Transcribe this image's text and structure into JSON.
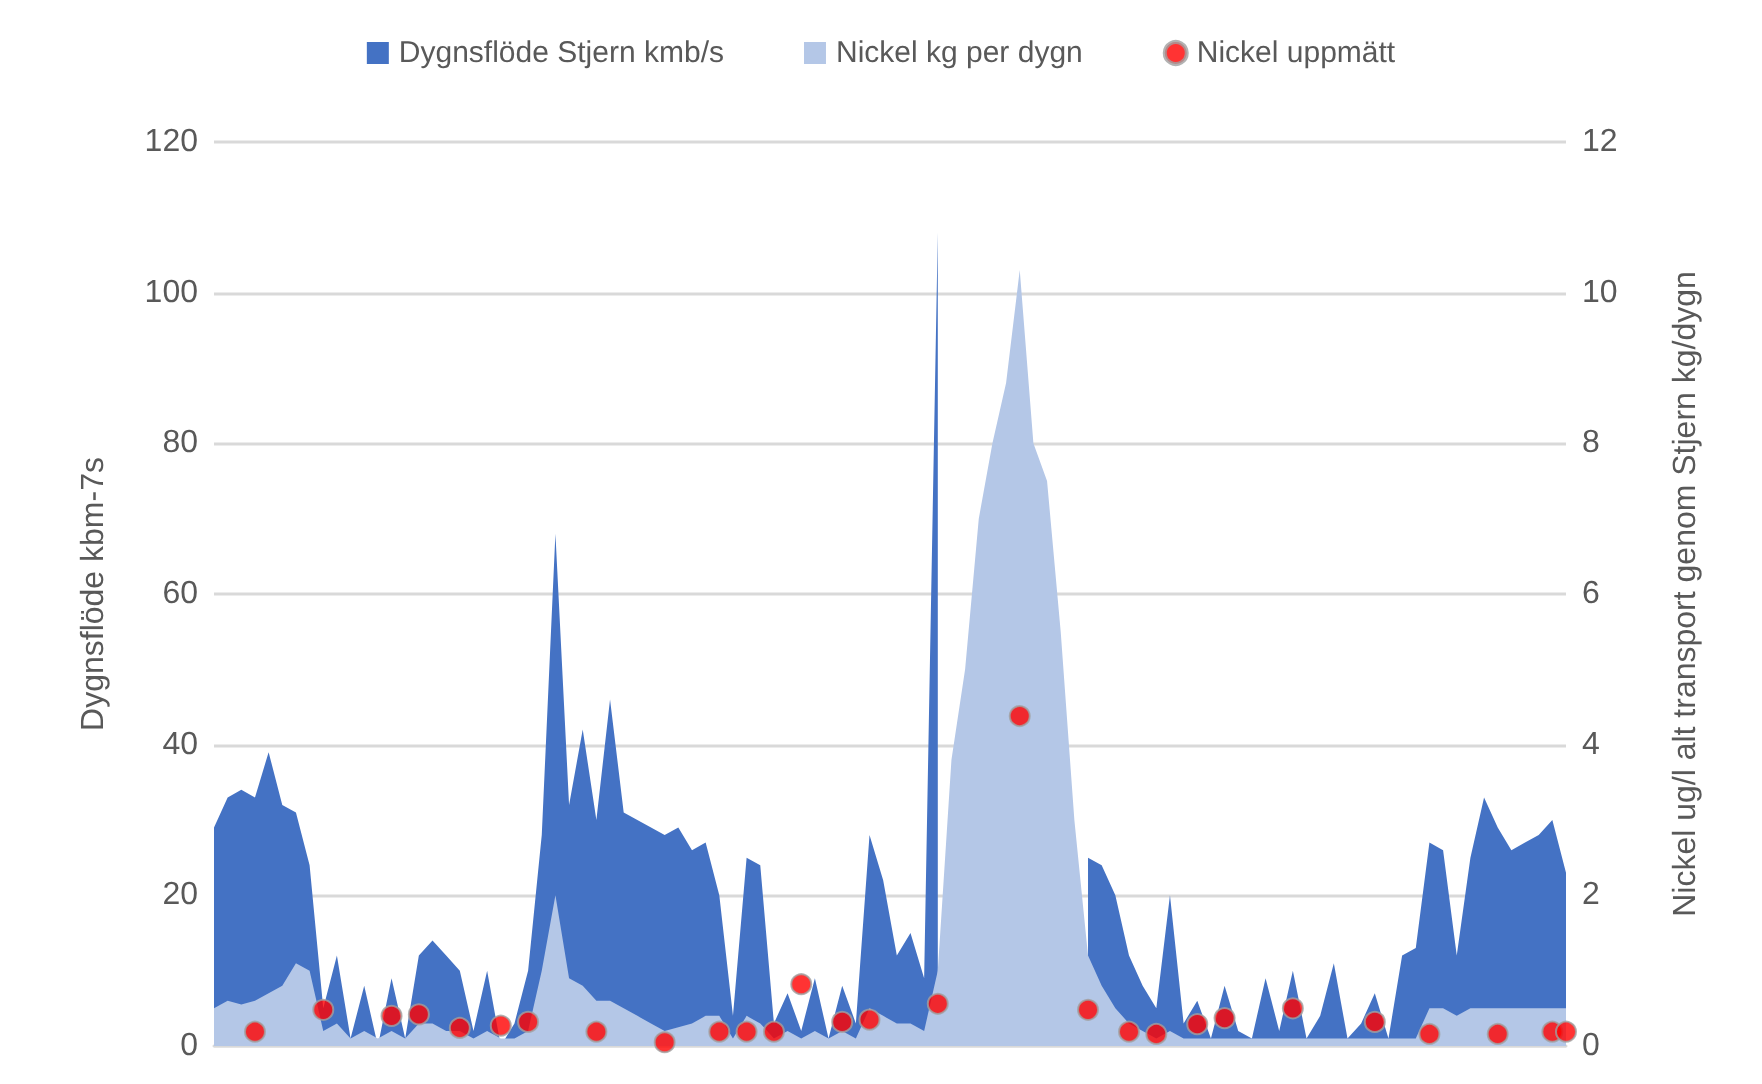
{
  "chart_data": {
    "type": "area",
    "ylabel": "Dygnsflöde kbm-7s",
    "y2label": "Nickel ug/l alt transport genom Stjern kg/dygn",
    "categories": [
      null,
      null,
      null,
      null,
      null,
      null,
      null,
      null,
      null,
      null,
      null,
      null,
      null,
      null,
      null,
      null,
      null,
      null,
      null,
      null,
      null,
      null,
      null,
      null,
      null,
      null,
      null,
      null,
      null,
      null,
      null,
      null,
      null,
      null,
      null,
      null,
      null,
      null,
      null,
      null,
      null,
      null,
      null,
      null,
      null,
      null,
      null,
      null,
      null,
      null,
      null,
      null,
      null,
      null,
      null,
      null,
      null,
      null,
      null,
      null,
      null,
      null,
      null,
      null,
      null,
      null,
      null,
      null,
      null,
      null,
      null,
      null,
      null,
      null,
      null,
      null,
      null,
      null,
      null,
      null,
      null,
      null,
      null,
      null,
      null,
      null,
      null,
      null,
      null,
      null,
      null,
      null,
      null,
      null,
      null,
      null,
      null,
      null,
      null,
      null
    ],
    "ylim": [
      0,
      120
    ],
    "yticks": [
      0,
      20,
      40,
      60,
      80,
      100,
      120
    ],
    "y2lim": [
      0,
      12
    ],
    "y2ticks": [
      0,
      2,
      4,
      6,
      8,
      10,
      12
    ],
    "grid": "y",
    "legend": "top",
    "series": [
      {
        "name": "Dygnsflöde Stjern kmb/s",
        "axis": "y",
        "color": "#4472c4",
        "values": [
          29,
          33,
          34,
          33,
          39,
          32,
          31,
          24,
          5,
          12,
          1,
          8,
          0,
          9,
          1,
          12,
          14,
          12,
          10,
          2,
          10,
          0,
          3,
          10,
          28,
          68,
          32,
          42,
          30,
          46,
          31,
          30,
          29,
          28,
          29,
          26,
          27,
          20,
          4,
          25,
          24,
          3,
          7,
          2,
          9,
          1,
          8,
          3,
          28,
          22,
          12,
          15,
          9,
          108,
          null,
          null,
          null,
          null,
          null,
          null,
          null,
          null,
          null,
          null,
          25,
          24,
          20,
          12,
          8,
          5,
          20,
          3,
          6,
          1,
          8,
          2,
          1,
          9,
          2,
          10,
          1,
          4,
          11,
          1,
          3,
          7,
          1,
          12,
          13,
          27,
          26,
          12,
          25,
          33,
          29,
          26,
          27,
          28,
          30,
          23
        ]
      },
      {
        "name": "Nickel kg per dygn",
        "axis": "y2",
        "color": "#b4c7e7",
        "values": [
          0.5,
          0.6,
          0.55,
          0.6,
          0.7,
          0.8,
          1.1,
          1.0,
          0.2,
          0.3,
          0.1,
          0.2,
          0.1,
          0.2,
          0.1,
          0.3,
          0.3,
          0.2,
          0.2,
          0.1,
          0.2,
          0.1,
          0.1,
          0.2,
          1.0,
          2.0,
          0.9,
          0.8,
          0.6,
          0.6,
          0.5,
          0.4,
          0.3,
          0.2,
          0.25,
          0.3,
          0.4,
          0.4,
          0.1,
          0.4,
          0.3,
          0.1,
          0.2,
          0.1,
          0.2,
          0.1,
          0.2,
          0.1,
          0.5,
          0.4,
          0.3,
          0.3,
          0.2,
          1.0,
          3.8,
          5.0,
          7.0,
          8.0,
          8.8,
          10.3,
          8.0,
          7.5,
          5.5,
          3.0,
          1.2,
          0.8,
          0.5,
          0.3,
          0.2,
          0.1,
          0.2,
          0.1,
          0.1,
          0.1,
          0.1,
          0.1,
          0.1,
          0.1,
          0.1,
          0.1,
          0.1,
          0.1,
          0.1,
          0.1,
          0.1,
          0.1,
          0.1,
          0.1,
          0.1,
          0.5,
          0.5,
          0.4,
          0.5,
          0.5,
          0.5,
          0.5,
          0.5,
          0.5,
          0.5,
          0.5
        ]
      },
      {
        "name": "Nickel uppmätt",
        "type": "scatter",
        "axis": "y2",
        "marker": "circle",
        "color": "#ff0000",
        "values": [
          null,
          null,
          null,
          0.19,
          null,
          null,
          null,
          null,
          0.48,
          null,
          null,
          null,
          null,
          0.4,
          null,
          0.42,
          null,
          null,
          0.24,
          null,
          null,
          0.27,
          null,
          0.32,
          null,
          null,
          null,
          null,
          0.19,
          null,
          null,
          null,
          null,
          0.05,
          null,
          null,
          null,
          0.19,
          null,
          0.19,
          null,
          0.19,
          null,
          0.82,
          null,
          null,
          0.32,
          null,
          0.35,
          null,
          null,
          null,
          null,
          0.56,
          null,
          null,
          null,
          null,
          null,
          4.38,
          null,
          null,
          null,
          null,
          0.48,
          null,
          null,
          0.19,
          null,
          0.16,
          null,
          null,
          0.29,
          null,
          0.37,
          null,
          null,
          null,
          null,
          0.5,
          null,
          null,
          null,
          null,
          null,
          0.32,
          null,
          null,
          null,
          0.16,
          null,
          null,
          null,
          null,
          0.16,
          null,
          null,
          null,
          0.19,
          0.19
        ]
      }
    ]
  }
}
